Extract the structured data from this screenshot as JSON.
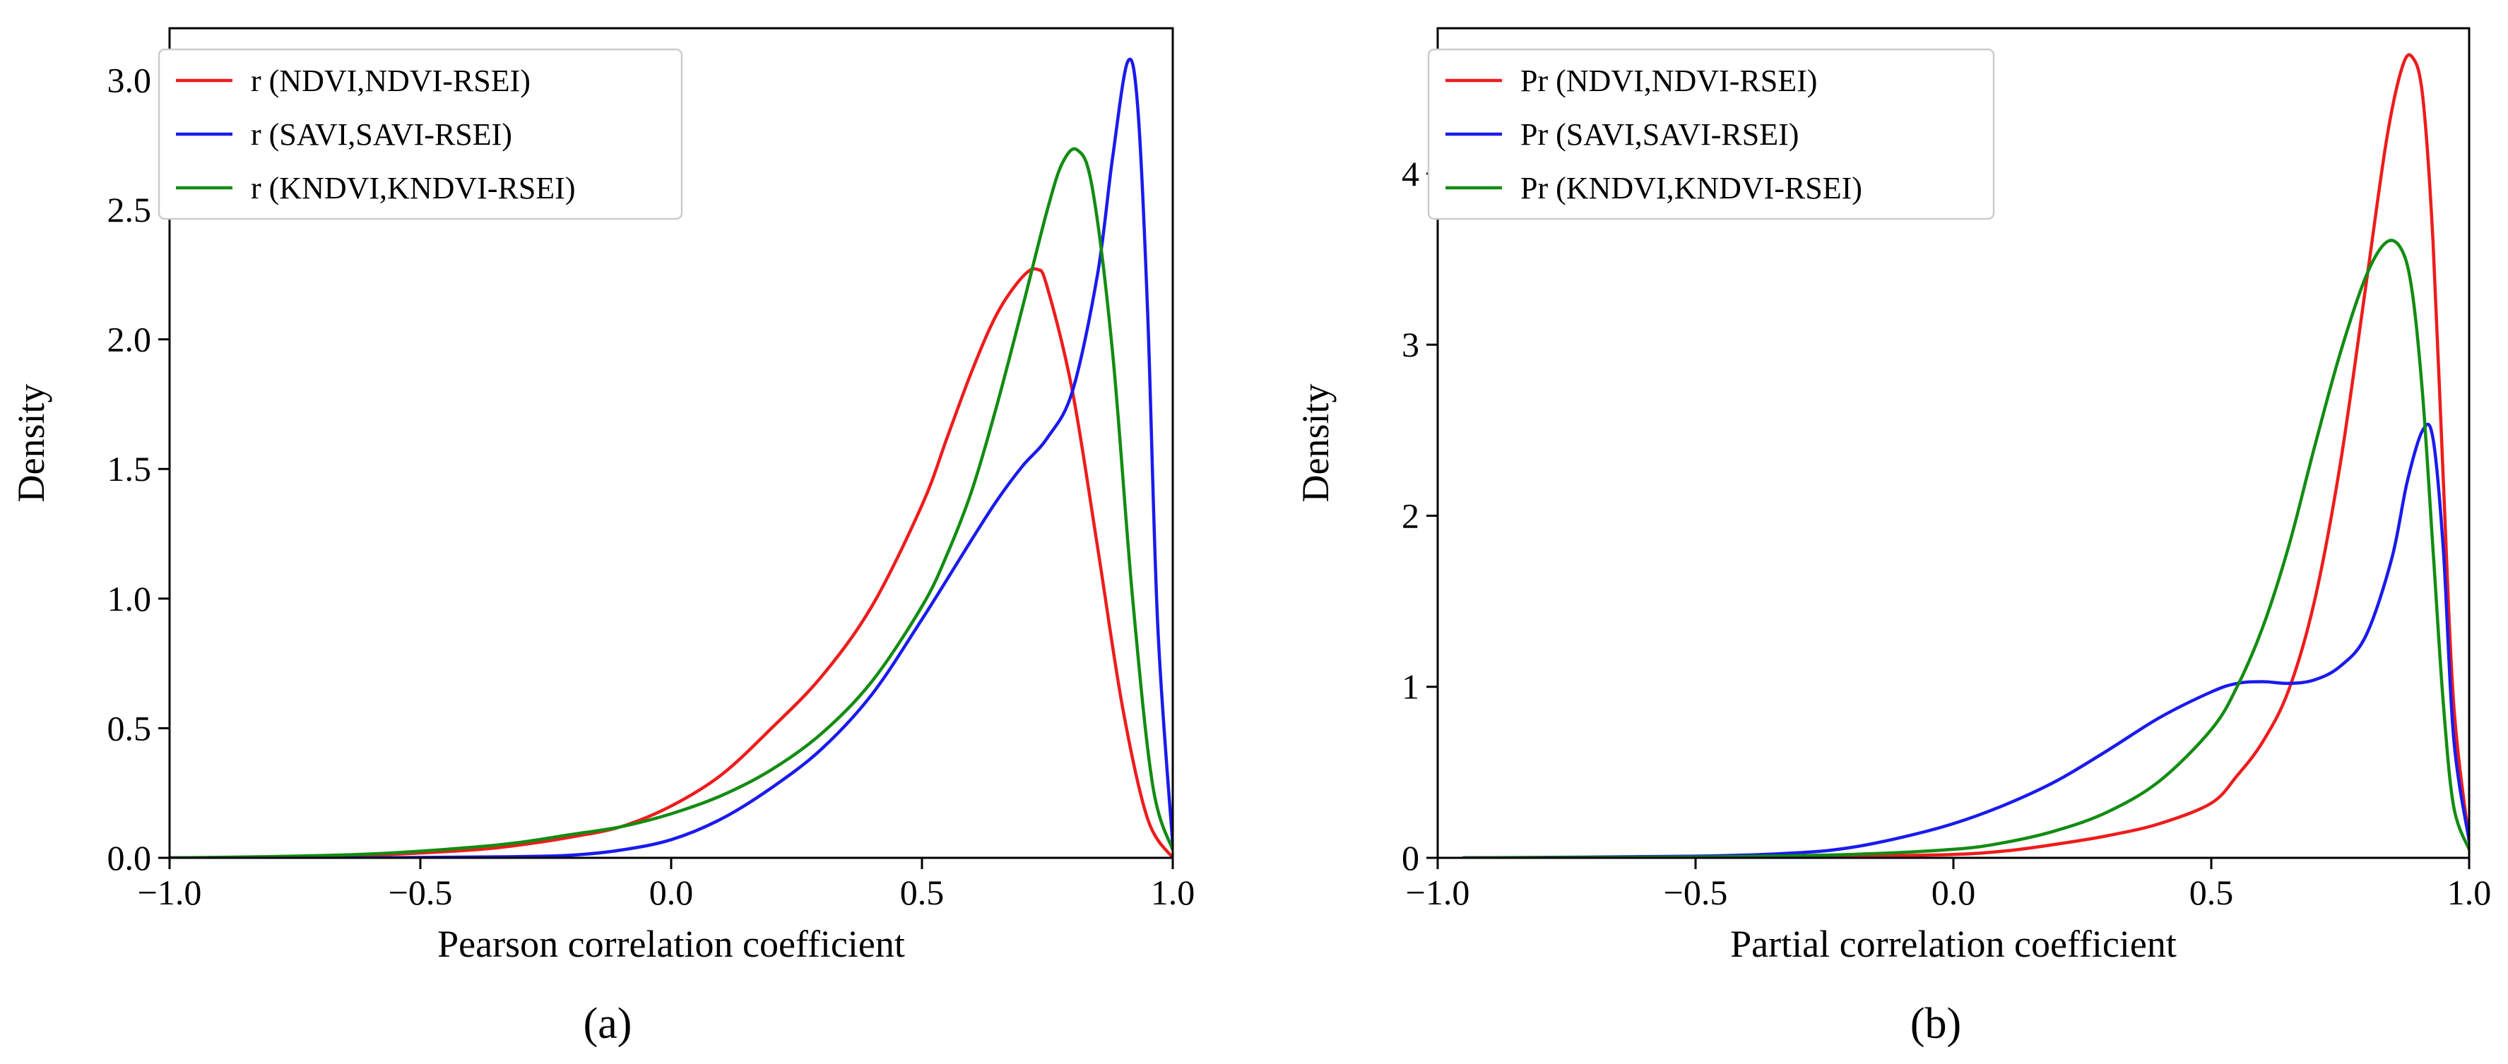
{
  "colors": {
    "red": "#ee1c1c",
    "blue": "#1a1aee",
    "green": "#128c12"
  },
  "chart_data": [
    {
      "type": "line",
      "panel_label": "(a)",
      "xlabel": "Pearson correlation coefficient",
      "ylabel": "Density",
      "xlim": [
        -1.0,
        1.0
      ],
      "ylim": [
        0,
        3.2
      ],
      "xticks": [
        -1.0,
        -0.5,
        0.0,
        0.5,
        1.0
      ],
      "xtick_labels": [
        "−1.0",
        "−0.5",
        "0.0",
        "0.5",
        "1.0"
      ],
      "yticks": [
        0,
        0.5,
        1.0,
        1.5,
        2.0,
        2.5,
        3.0
      ],
      "ytick_labels": [
        "0.0",
        "0.5",
        "1.0",
        "1.5",
        "2.0",
        "2.5",
        "3.0"
      ],
      "legend_position": "upper-left",
      "series": [
        {
          "name": "r (NDVI,NDVI-RSEI)",
          "color": "red",
          "x": [
            -1.0,
            -0.8,
            -0.6,
            -0.4,
            -0.3,
            -0.2,
            -0.1,
            0.0,
            0.1,
            0.2,
            0.3,
            0.4,
            0.5,
            0.55,
            0.6,
            0.65,
            0.7,
            0.73,
            0.75,
            0.8,
            0.85,
            0.9,
            0.95,
            1.0
          ],
          "y": [
            0,
            0.002,
            0.01,
            0.03,
            0.05,
            0.08,
            0.12,
            0.2,
            0.32,
            0.5,
            0.7,
            0.97,
            1.36,
            1.62,
            1.88,
            2.1,
            2.24,
            2.27,
            2.2,
            1.8,
            1.2,
            0.58,
            0.15,
            0.0
          ]
        },
        {
          "name": "r (SAVI,SAVI-RSEI)",
          "color": "blue",
          "x": [
            -1.0,
            -0.6,
            -0.4,
            -0.3,
            -0.2,
            -0.1,
            0.0,
            0.1,
            0.2,
            0.3,
            0.4,
            0.5,
            0.6,
            0.65,
            0.7,
            0.75,
            0.8,
            0.85,
            0.88,
            0.91,
            0.93,
            0.95,
            0.97,
            1.0
          ],
          "y": [
            0,
            0.0,
            0.003,
            0.005,
            0.01,
            0.03,
            0.07,
            0.15,
            0.27,
            0.42,
            0.63,
            0.92,
            1.23,
            1.38,
            1.51,
            1.62,
            1.8,
            2.25,
            2.7,
            3.07,
            2.9,
            2.1,
            0.9,
            0.05
          ]
        },
        {
          "name": "r (KNDVI,KNDVI-RSEI)",
          "color": "green",
          "x": [
            -1.0,
            -0.8,
            -0.6,
            -0.4,
            -0.3,
            -0.2,
            -0.1,
            0.0,
            0.1,
            0.2,
            0.3,
            0.4,
            0.5,
            0.55,
            0.6,
            0.65,
            0.7,
            0.75,
            0.78,
            0.81,
            0.84,
            0.88,
            0.92,
            0.96,
            1.0
          ],
          "y": [
            0,
            0.005,
            0.015,
            0.04,
            0.06,
            0.09,
            0.12,
            0.17,
            0.24,
            0.34,
            0.48,
            0.68,
            0.97,
            1.17,
            1.42,
            1.75,
            2.12,
            2.5,
            2.68,
            2.73,
            2.58,
            1.95,
            1.0,
            0.28,
            0.03
          ]
        }
      ]
    },
    {
      "type": "line",
      "panel_label": "(b)",
      "xlabel": "Partial correlation coefficient",
      "ylabel": "Density",
      "xlim": [
        -1.0,
        1.0
      ],
      "ylim": [
        0,
        4.85
      ],
      "xticks": [
        -1.0,
        -0.5,
        0.0,
        0.5,
        1.0
      ],
      "xtick_labels": [
        "−1.0",
        "−0.5",
        "0.0",
        "0.5",
        "1.0"
      ],
      "yticks": [
        0,
        1,
        2,
        3,
        4
      ],
      "ytick_labels": [
        "0",
        "1",
        "2",
        "3",
        "4"
      ],
      "legend_position": "upper-left",
      "series": [
        {
          "name": "Pr (NDVI,NDVI-RSEI)",
          "color": "red",
          "x": [
            -0.95,
            -0.5,
            -0.2,
            0.0,
            0.1,
            0.2,
            0.3,
            0.4,
            0.5,
            0.55,
            0.6,
            0.65,
            0.7,
            0.75,
            0.8,
            0.84,
            0.87,
            0.89,
            0.91,
            0.93,
            0.95,
            0.97,
            1.0
          ],
          "y": [
            0,
            0.0,
            0.01,
            0.02,
            0.04,
            0.08,
            0.13,
            0.2,
            0.32,
            0.48,
            0.68,
            0.98,
            1.5,
            2.3,
            3.35,
            4.2,
            4.62,
            4.68,
            4.45,
            3.6,
            2.2,
            0.9,
            0.1
          ]
        },
        {
          "name": "Pr (SAVI,SAVI-RSEI)",
          "color": "blue",
          "x": [
            -0.95,
            -0.5,
            -0.3,
            -0.2,
            -0.1,
            0.0,
            0.1,
            0.2,
            0.3,
            0.4,
            0.5,
            0.55,
            0.6,
            0.65,
            0.7,
            0.75,
            0.8,
            0.85,
            0.88,
            0.91,
            0.93,
            0.95,
            0.97,
            1.0
          ],
          "y": [
            0,
            0.01,
            0.03,
            0.06,
            0.12,
            0.2,
            0.31,
            0.45,
            0.63,
            0.82,
            0.97,
            1.02,
            1.03,
            1.02,
            1.04,
            1.12,
            1.3,
            1.75,
            2.2,
            2.5,
            2.45,
            1.8,
            0.7,
            0.1
          ]
        },
        {
          "name": "Pr (KNDVI,KNDVI-RSEI)",
          "color": "green",
          "x": [
            -0.95,
            -0.5,
            -0.2,
            0.0,
            0.1,
            0.2,
            0.3,
            0.4,
            0.5,
            0.55,
            0.6,
            0.65,
            0.7,
            0.75,
            0.8,
            0.84,
            0.87,
            0.89,
            0.91,
            0.93,
            0.95,
            0.97,
            1.0
          ],
          "y": [
            0,
            0.005,
            0.02,
            0.05,
            0.09,
            0.16,
            0.27,
            0.45,
            0.75,
            1.0,
            1.35,
            1.82,
            2.4,
            2.95,
            3.4,
            3.6,
            3.55,
            3.3,
            2.7,
            1.8,
            0.9,
            0.3,
            0.05
          ]
        }
      ]
    }
  ]
}
